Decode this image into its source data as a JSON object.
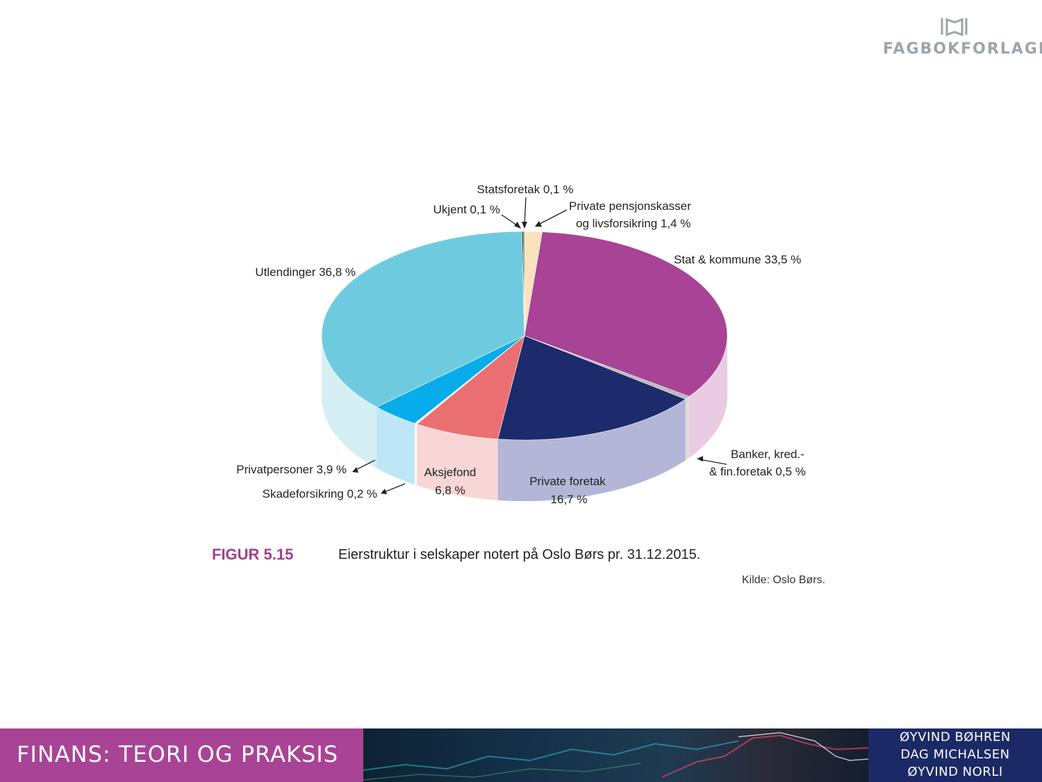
{
  "publisher": {
    "name": "FAGBOKFORLAGET",
    "logo_icon": "book-logo-icon"
  },
  "chart_data": {
    "type": "pie",
    "title": "",
    "unit": "%",
    "slices": [
      {
        "label": "Private pensjonskasser og livsforsikring 1,4 %",
        "value": 1.4,
        "top": "#fce1bd",
        "side": "#fdeedd"
      },
      {
        "label": "Stat & kommune 33,5 %",
        "value": 33.5,
        "top": "#a84396",
        "side": "#e9cbe3"
      },
      {
        "label": "Banker, kred.- & fin.foretak 0,5 %",
        "value": 0.5,
        "top": "#b8b8b8",
        "side": "#dcdcdc"
      },
      {
        "label": "Private foretak 16,7 %",
        "value": 16.7,
        "top": "#1d2b6c",
        "side": "#b3b6d6"
      },
      {
        "label": "Aksjefond 6,8 %",
        "value": 6.8,
        "top": "#ea6f72",
        "side": "#f8d6d6"
      },
      {
        "label": "Skadeforsikring 0,2 %",
        "value": 0.2,
        "top": "#f4f4f4",
        "side": "#ffffff"
      },
      {
        "label": "Privatpersoner 3,9 %",
        "value": 3.9,
        "top": "#08acea",
        "side": "#bde6f7"
      },
      {
        "label": "Utlendinger 36,8 %",
        "value": 36.8,
        "top": "#6ecbdf",
        "side": "#d6eff5"
      },
      {
        "label": "Ukjent 0,1 %",
        "value": 0.1,
        "top": "#1a1a1a",
        "side": "#777777"
      },
      {
        "label": "Statsforetak 0,1 %",
        "value": 0.1,
        "top": "#2e7d32",
        "side": "#8fbf91"
      }
    ],
    "labels": {
      "statsforetak": "Statsforetak 0,1 %",
      "ukjent": "Ukjent 0,1 %",
      "pensjon_1": "Private pensjonskasser",
      "pensjon_2": "og livsforsikring 1,4 %",
      "stat": "Stat & kommune 33,5 %",
      "utlendinger": "Utlendinger 36,8 %",
      "banker_1": "Banker, kred.-",
      "banker_2": "& fin.foretak 0,5 %",
      "privatpersoner": "Privatpersoner 3,9 %",
      "skadeforsikring": "Skadeforsikring 0,2 %",
      "aksjefond_1": "Aksjefond",
      "aksjefond_2": "6,8 %",
      "private_foretak_1": "Private foretak",
      "private_foretak_2": "16,7 %"
    }
  },
  "caption": {
    "figure": "FIGUR 5.15",
    "text": "Eierstruktur i selskaper notert på Oslo Børs pr. 31.12.2015.",
    "source": "Kilde: Oslo Børs."
  },
  "footer": {
    "title": "FINANS: TEORI OG PRAKSIS",
    "authors": [
      "ØYVIND BØHREN",
      "DAG MICHALSEN",
      "ØYVIND NORLI"
    ]
  }
}
